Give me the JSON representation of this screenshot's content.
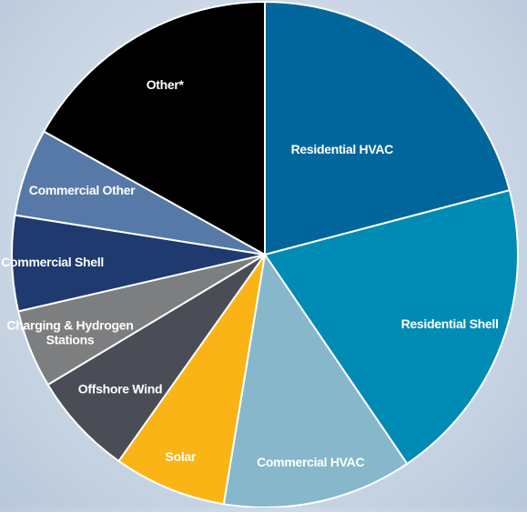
{
  "chart_data": {
    "type": "pie",
    "title": "",
    "start_direction": "top",
    "direction": "clockwise",
    "slices": [
      {
        "label": "Residential HVAC",
        "value": 20.9,
        "color": "#00669b"
      },
      {
        "label": "Residential Shell",
        "value": 19.6,
        "color": "#008bb5"
      },
      {
        "label": "Commercial HVAC",
        "value": 12.1,
        "color": "#86b7ca"
      },
      {
        "label": "Solar",
        "value": 7.2,
        "color": "#fbb415"
      },
      {
        "label": "Offshore Wind",
        "value": 6.6,
        "color": "#4a4d55"
      },
      {
        "label": "Charging & Hydrogen Stations",
        "value": 5.0,
        "color": "#7c7e80"
      },
      {
        "label": "Commercial Shell",
        "value": 6.1,
        "color": "#1f3a6e"
      },
      {
        "label": "Commercial Other",
        "value": 5.6,
        "color": "#5679a8"
      },
      {
        "label": "Other*",
        "value": 16.9,
        "color": "#000000"
      }
    ]
  }
}
